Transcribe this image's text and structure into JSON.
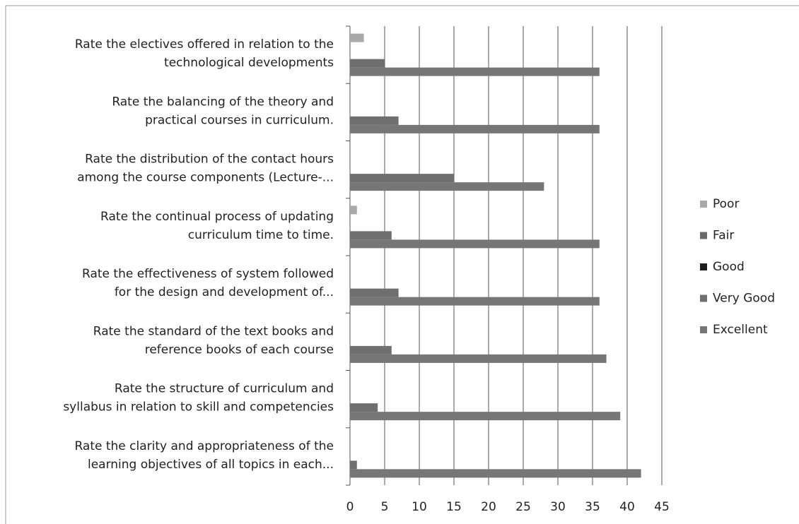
{
  "chart_data": {
    "type": "bar",
    "orientation": "horizontal",
    "categories": [
      [
        "Rate the electives offered in relation to the",
        "technological developments"
      ],
      [
        "Rate the balancing of the theory and",
        "practical courses in curriculum."
      ],
      [
        "Rate the distribution of the contact hours",
        "among the course components (Lecture-..."
      ],
      [
        "Rate the continual process of updating",
        "curriculum time to time."
      ],
      [
        "Rate the effectiveness of system followed",
        "for the design and development of..."
      ],
      [
        "Rate the standard of the text books and",
        "reference books of each course"
      ],
      [
        "Rate the structure of curriculum and",
        "syllabus in relation to skill and competencies"
      ],
      [
        "Rate the clarity and appropriateness of the",
        "learning objectives of all topics in each..."
      ]
    ],
    "series": [
      {
        "name": "Poor",
        "color": "#a9a9a9",
        "values": [
          2,
          0,
          0,
          1,
          0,
          0,
          0,
          0
        ]
      },
      {
        "name": "Fair",
        "color": "#6a6a6a",
        "values": [
          0,
          0,
          0,
          0,
          0,
          0,
          0,
          0
        ]
      },
      {
        "name": "Good",
        "color": "#1e1e1e",
        "values": [
          0,
          0,
          0,
          0,
          0,
          0,
          0,
          0
        ]
      },
      {
        "name": "Very Good",
        "color": "#6f6f6f",
        "values": [
          5,
          7,
          15,
          6,
          7,
          6,
          4,
          1
        ]
      },
      {
        "name": "Excellent",
        "color": "#767676",
        "values": [
          36,
          36,
          28,
          36,
          36,
          37,
          39,
          42
        ]
      }
    ],
    "xlim": [
      0,
      45
    ],
    "xticks": [
      0,
      5,
      10,
      15,
      20,
      25,
      30,
      35,
      40,
      45
    ],
    "grid": true,
    "legend": "right"
  }
}
